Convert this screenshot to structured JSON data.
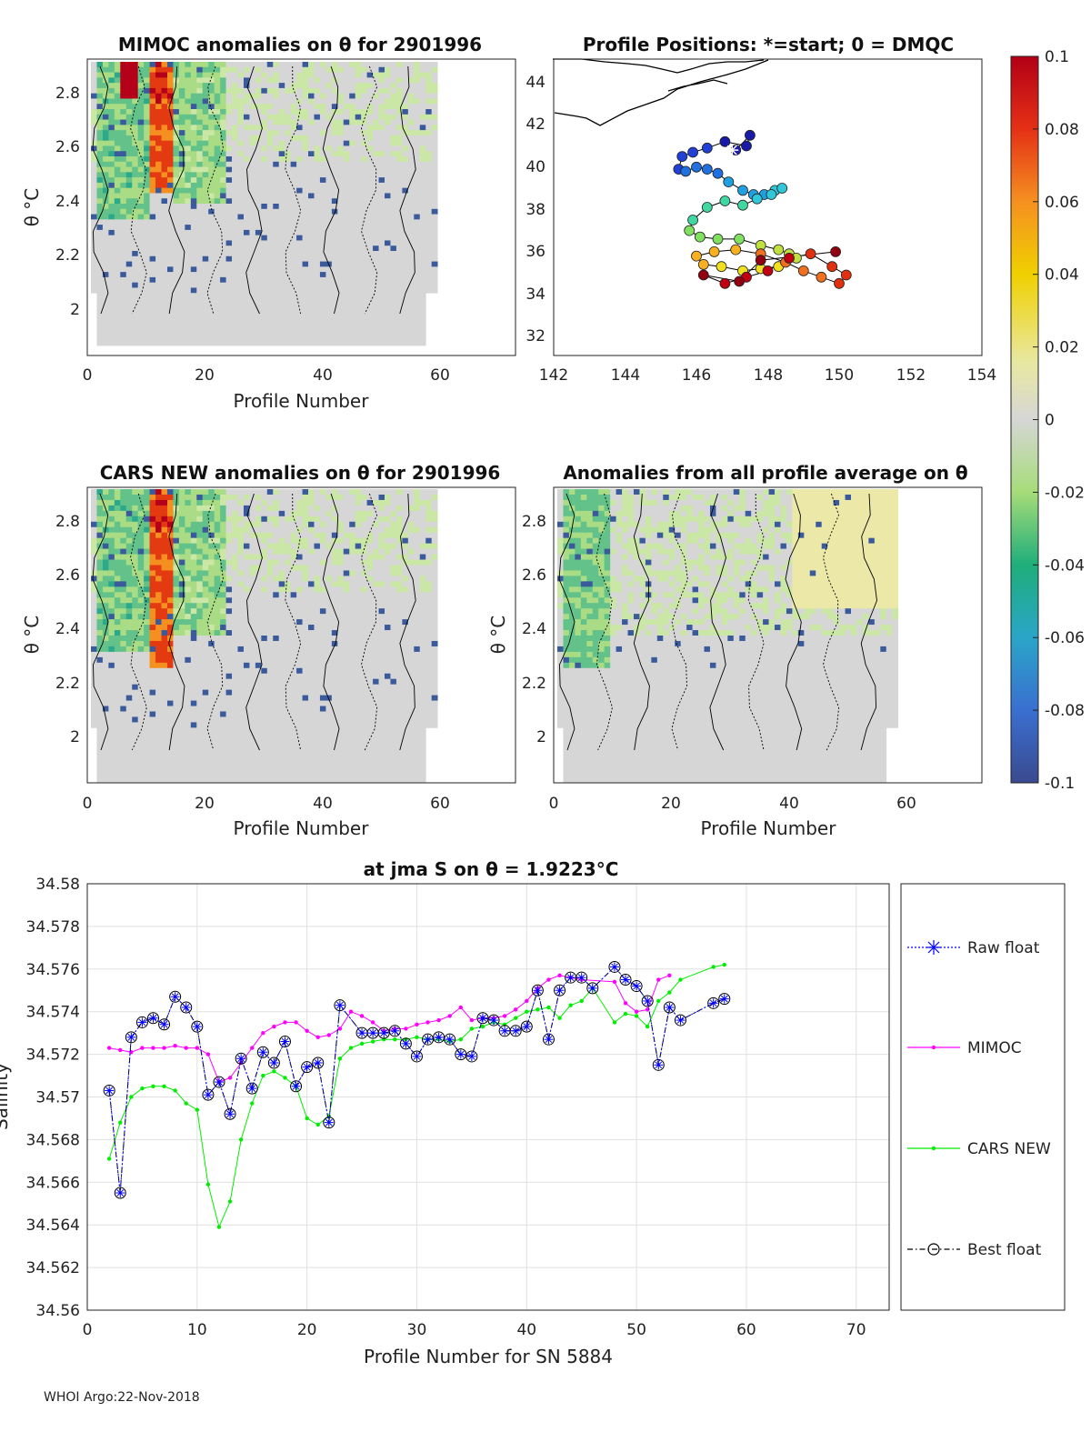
{
  "panels": {
    "mimoc": {
      "title": "MIMOC anomalies on θ  for 2901996",
      "xlabel": "Profile Number",
      "ylabel": "θ °C",
      "xticks": [
        "0",
        "20",
        "40",
        "60"
      ],
      "yticks": [
        "2",
        "2.2",
        "2.4",
        "2.6",
        "2.8"
      ]
    },
    "positions": {
      "title": "Profile Positions: *=start; 0 = DMQC",
      "xticks": [
        "142",
        "144",
        "146",
        "148",
        "150",
        "152",
        "154"
      ],
      "yticks": [
        "32",
        "34",
        "36",
        "38",
        "40",
        "42",
        "44"
      ]
    },
    "cars": {
      "title": "CARS NEW anomalies on θ for 2901996",
      "xlabel": "Profile Number",
      "ylabel": "θ °C",
      "xticks": [
        "0",
        "20",
        "40",
        "60"
      ],
      "yticks": [
        "2",
        "2.2",
        "2.4",
        "2.6",
        "2.8"
      ]
    },
    "avg": {
      "title": "Anomalies from all profile average on θ",
      "xlabel": "Profile Number",
      "ylabel": "θ °C",
      "xticks": [
        "0",
        "20",
        "40",
        "60"
      ],
      "yticks": [
        "2",
        "2.2",
        "2.4",
        "2.6",
        "2.8"
      ]
    }
  },
  "colorbar": {
    "ticks": [
      "0.1",
      "0.08",
      "0.06",
      "0.04",
      "0.02",
      "0",
      "-0.02",
      "-0.04",
      "-0.06",
      "-0.08",
      "-0.1"
    ]
  },
  "footer": "WHOI Argo:22-Nov-2018",
  "chart_data": [
    {
      "type": "line",
      "title": "at jma S on θ = 1.9223°C",
      "xlabel": "Profile Number for SN 5884",
      "ylabel": "Salinity",
      "xlim": [
        0,
        73
      ],
      "ylim": [
        34.56,
        34.58
      ],
      "xticks": [
        "0",
        "10",
        "20",
        "30",
        "40",
        "50",
        "60",
        "70"
      ],
      "yticks": [
        "34.56",
        "34.562",
        "34.564",
        "34.566",
        "34.568",
        "34.57",
        "34.572",
        "34.574",
        "34.576",
        "34.578",
        "34.58"
      ],
      "series": [
        {
          "name": "Raw float",
          "color": "#0000ff",
          "x": [
            2,
            3,
            4,
            5,
            6,
            7,
            8,
            9,
            10,
            11,
            12,
            13,
            14,
            15,
            16,
            17,
            18,
            19,
            20,
            21,
            22,
            23,
            25,
            26,
            27,
            28,
            29,
            30,
            31,
            32,
            33,
            34,
            35,
            36,
            37,
            38,
            39,
            40,
            41,
            42,
            43,
            44,
            45,
            46,
            48,
            49,
            50,
            51,
            52,
            53,
            54,
            57,
            58
          ],
          "y": [
            34.5703,
            34.5655,
            34.5728,
            34.5735,
            34.5737,
            34.5734,
            34.5747,
            34.5742,
            34.5733,
            34.5701,
            34.5707,
            34.5692,
            34.5718,
            34.5704,
            34.5721,
            34.5716,
            34.5726,
            34.5705,
            34.5714,
            34.5716,
            34.5688,
            34.5743,
            34.573,
            34.573,
            34.573,
            34.5731,
            34.5725,
            34.5719,
            34.5727,
            34.5728,
            34.5727,
            34.572,
            34.5719,
            34.5737,
            34.5736,
            34.5731,
            34.5731,
            34.5733,
            34.575,
            34.5727,
            34.575,
            34.5756,
            34.5756,
            34.5751,
            34.5761,
            34.5755,
            34.5752,
            34.5745,
            34.5715,
            34.5742,
            34.5736,
            34.5744,
            34.5746
          ]
        },
        {
          "name": "MIMOC",
          "color": "#ff00ff",
          "x": [
            2,
            3,
            4,
            5,
            6,
            7,
            8,
            9,
            10,
            11,
            12,
            13,
            14,
            15,
            16,
            17,
            18,
            19,
            20,
            21,
            22,
            23,
            24,
            25,
            26,
            27,
            28,
            29,
            30,
            31,
            32,
            33,
            34,
            35,
            36,
            37,
            38,
            39,
            40,
            41,
            42,
            43,
            44,
            45,
            48,
            49,
            50,
            51,
            52,
            53
          ],
          "y": [
            34.5723,
            34.5722,
            34.5721,
            34.5723,
            34.5723,
            34.5723,
            34.5724,
            34.5723,
            34.5723,
            34.572,
            34.5707,
            34.5709,
            34.5716,
            34.5723,
            34.573,
            34.5733,
            34.5735,
            34.5735,
            34.5731,
            34.5728,
            34.5729,
            34.5732,
            34.574,
            34.5738,
            34.5735,
            34.5731,
            34.5732,
            34.5732,
            34.5734,
            34.5735,
            34.5736,
            34.5738,
            34.5742,
            34.5736,
            34.5737,
            34.5737,
            34.5738,
            34.5741,
            34.5745,
            34.5751,
            34.5755,
            34.5757,
            34.5756,
            34.5755,
            34.5754,
            34.5744,
            34.574,
            34.5741,
            34.5755,
            34.5757
          ]
        },
        {
          "name": "CARS NEW",
          "color": "#00ee00",
          "x": [
            2,
            3,
            4,
            5,
            6,
            7,
            8,
            9,
            10,
            11,
            12,
            13,
            14,
            15,
            16,
            17,
            18,
            19,
            20,
            21,
            22,
            23,
            24,
            25,
            26,
            27,
            28,
            29,
            30,
            31,
            32,
            33,
            34,
            35,
            36,
            37,
            38,
            39,
            40,
            41,
            42,
            43,
            44,
            45,
            46,
            48,
            49,
            50,
            51,
            52,
            53,
            54,
            57,
            58
          ],
          "y": [
            34.5671,
            34.5688,
            34.57,
            34.5704,
            34.5705,
            34.5705,
            34.5703,
            34.5697,
            34.5694,
            34.5659,
            34.5639,
            34.5651,
            34.568,
            34.5697,
            34.571,
            34.5712,
            34.5709,
            34.5705,
            34.569,
            34.5687,
            34.5691,
            34.5718,
            34.5723,
            34.5725,
            34.5726,
            34.5727,
            34.5727,
            34.5727,
            34.5728,
            34.5727,
            34.5727,
            34.5726,
            34.5727,
            34.5732,
            34.5733,
            34.5735,
            34.5734,
            34.5737,
            34.574,
            34.5741,
            34.5742,
            34.5737,
            34.5743,
            34.5745,
            34.5751,
            34.5735,
            34.5739,
            34.5738,
            34.5733,
            34.5745,
            34.5749,
            34.5755,
            34.5761,
            34.5762
          ]
        },
        {
          "name": "Best float",
          "color": "#000000",
          "x": [
            2,
            3,
            4,
            5,
            6,
            7,
            8,
            9,
            10,
            11,
            12,
            13,
            14,
            15,
            16,
            17,
            18,
            19,
            20,
            21,
            22,
            23,
            25,
            26,
            27,
            28,
            29,
            30,
            31,
            32,
            33,
            34,
            35,
            36,
            37,
            38,
            39,
            40,
            41,
            42,
            43,
            44,
            45,
            46,
            48,
            49,
            50,
            51,
            52,
            53,
            54,
            57,
            58
          ],
          "y": [
            34.5703,
            34.5655,
            34.5728,
            34.5735,
            34.5737,
            34.5734,
            34.5747,
            34.5742,
            34.5733,
            34.5701,
            34.5707,
            34.5692,
            34.5718,
            34.5704,
            34.5721,
            34.5716,
            34.5726,
            34.5705,
            34.5714,
            34.5716,
            34.5688,
            34.5743,
            34.573,
            34.573,
            34.573,
            34.5731,
            34.5725,
            34.5719,
            34.5727,
            34.5728,
            34.5727,
            34.572,
            34.5719,
            34.5737,
            34.5736,
            34.5731,
            34.5731,
            34.5733,
            34.575,
            34.5727,
            34.575,
            34.5756,
            34.5756,
            34.5751,
            34.5761,
            34.5755,
            34.5752,
            34.5745,
            34.5715,
            34.5742,
            34.5736,
            34.5744,
            34.5746
          ]
        }
      ]
    },
    {
      "type": "scatter",
      "title": "Profile Positions: *=start; 0 = DMQC",
      "xlim": [
        142,
        154
      ],
      "ylim": [
        31,
        45
      ],
      "x": [
        147.1,
        147.5,
        147.4,
        146.8,
        146.3,
        145.9,
        145.6,
        145.5,
        145.7,
        146.0,
        146.3,
        146.6,
        146.9,
        147.3,
        147.6,
        147.9,
        148.2,
        148.4,
        148.1,
        147.7,
        147.3,
        146.8,
        146.3,
        145.9,
        145.8,
        146.1,
        146.6,
        147.2,
        147.8,
        148.3,
        148.6,
        148.8,
        148.3,
        147.8,
        147.3,
        146.7,
        146.2,
        146.0,
        146.5,
        147.1,
        147.8,
        148.5,
        149.0,
        149.5,
        150.0,
        150.2,
        149.8,
        149.2,
        148.6,
        148.0,
        147.4,
        146.8,
        146.2,
        147.2,
        147.8,
        149.9
      ],
      "y": [
        40.7,
        41.4,
        40.9,
        41.1,
        40.8,
        40.6,
        40.4,
        39.8,
        39.7,
        39.9,
        39.8,
        39.6,
        39.2,
        38.8,
        38.6,
        38.6,
        38.8,
        38.9,
        38.6,
        38.4,
        38.1,
        38.3,
        38.0,
        37.4,
        36.9,
        36.6,
        36.5,
        36.5,
        36.2,
        36.0,
        35.8,
        35.6,
        35.2,
        35.1,
        35.0,
        35.2,
        35.3,
        35.7,
        35.9,
        36.0,
        35.8,
        35.4,
        35.0,
        34.7,
        34.4,
        34.8,
        35.2,
        35.8,
        35.6,
        35.0,
        34.7,
        34.4,
        34.8,
        34.5,
        35.5,
        35.9
      ],
      "start": [
        147.0,
        40.7
      ]
    }
  ]
}
